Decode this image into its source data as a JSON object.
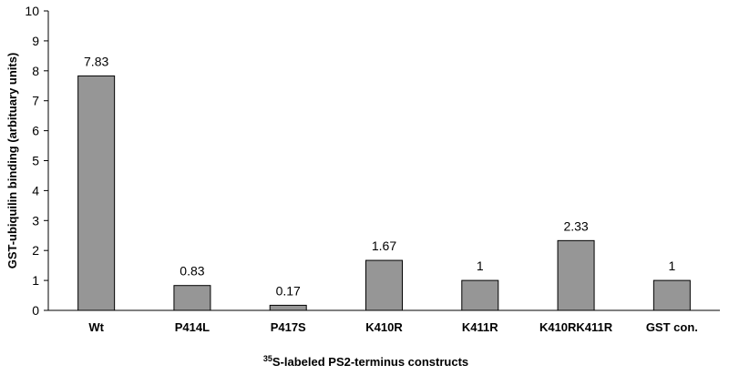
{
  "chart_data": {
    "type": "bar",
    "categories": [
      "Wt",
      "P414L",
      "P417S",
      "K410R",
      "K411R",
      "K410RK411R",
      "GST con."
    ],
    "values": [
      7.83,
      0.83,
      0.17,
      1.67,
      1,
      2.33,
      1
    ],
    "data_labels": [
      "7.83",
      "0.83",
      "0.17",
      "1.67",
      "1",
      "2.33",
      "1"
    ],
    "ylabel": "GST-ubiquilin binding (arbituary units)",
    "xlabel_superscript": "35",
    "xlabel": "S-labeled PS2-terminus constructs",
    "ylim": [
      0,
      10
    ],
    "yticks": [
      "0",
      "1",
      "2",
      "3",
      "4",
      "5",
      "6",
      "7",
      "8",
      "9",
      "10"
    ],
    "bar_color": "#969696",
    "grid": false,
    "legend": "none"
  }
}
